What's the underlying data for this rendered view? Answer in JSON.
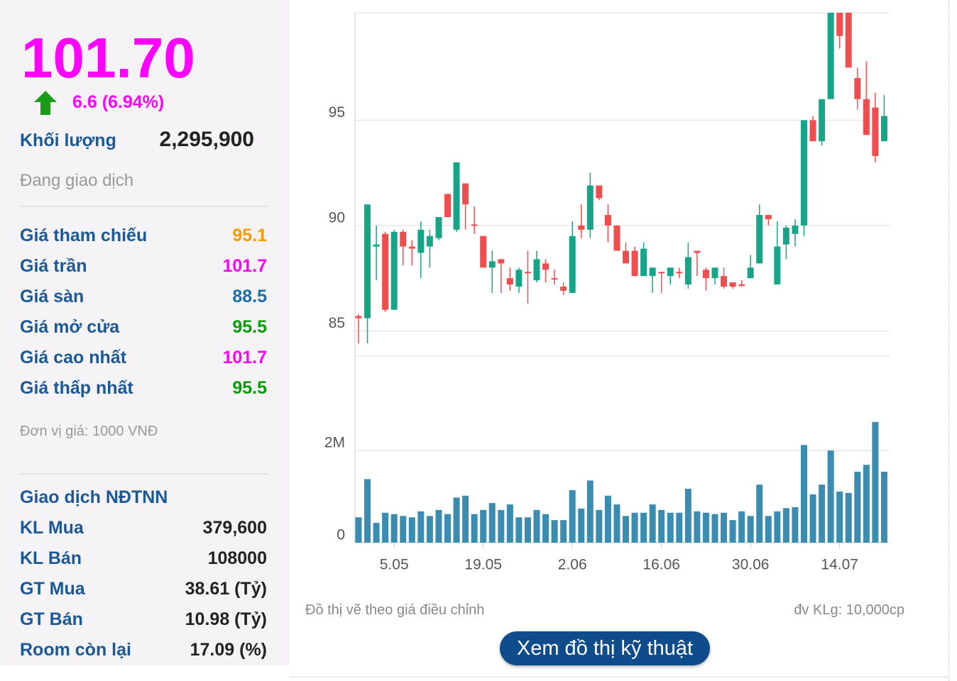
{
  "quote": {
    "price": "101.70",
    "change": "6.6 (6.94%)",
    "volume_label": "Khối lượng",
    "volume": "2,295,900",
    "status": "Đang giao dịch",
    "stats": [
      {
        "label": "Giá tham chiếu",
        "value": "95.1",
        "color": "#ff9900"
      },
      {
        "label": "Giá trần",
        "value": "101.7",
        "color": "#ff00ff"
      },
      {
        "label": "Giá sàn",
        "value": "88.5",
        "color": "#1a6fa8"
      },
      {
        "label": "Giá mở cửa",
        "value": "95.5",
        "color": "#00a000"
      },
      {
        "label": "Giá cao nhất",
        "value": "101.7",
        "color": "#ff00ff"
      },
      {
        "label": "Giá thấp nhất",
        "value": "95.5",
        "color": "#00a000"
      }
    ],
    "unit": "Đơn vị giá: 1000 VNĐ",
    "foreign": {
      "title": "Giao dịch NĐTNN",
      "rows": [
        {
          "label": "KL Mua",
          "value": "379,600"
        },
        {
          "label": "KL Bán",
          "value": "108000"
        },
        {
          "label": "GT Mua",
          "value": "38.61 (Tỷ)"
        },
        {
          "label": "GT Bán",
          "value": "10.98 (Tỷ)"
        },
        {
          "label": "Room còn lại",
          "value": "17.09 (%)"
        }
      ]
    }
  },
  "chart_data": {
    "type": "candlestick",
    "categories": [
      null,
      null,
      null,
      null,
      "5.05",
      null,
      null,
      null,
      null,
      null,
      null,
      null,
      null,
      null,
      "19.05",
      null,
      null,
      null,
      null,
      null,
      null,
      null,
      null,
      null,
      "2.06",
      null,
      null,
      null,
      null,
      null,
      null,
      null,
      null,
      null,
      "16.06",
      null,
      null,
      null,
      null,
      null,
      null,
      null,
      null,
      null,
      "30.06",
      null,
      null,
      null,
      null,
      null,
      null,
      null,
      null,
      null,
      "14.07",
      null,
      null,
      null,
      null,
      null
    ],
    "open": [
      85.7,
      85.6,
      89.0,
      89.6,
      86.0,
      89.7,
      89.0,
      88.7,
      89.0,
      89.4,
      91.5,
      89.8,
      92.0,
      90.05,
      89.5,
      88.0,
      88.4,
      87.5,
      87.1,
      87.8,
      87.4,
      88.2,
      87.5,
      87.1,
      86.8,
      90.0,
      89.8,
      91.9,
      90.5,
      90.0,
      88.8,
      88.8,
      87.6,
      87.6,
      87.8,
      87.6,
      87.8,
      87.2,
      88.8,
      87.9,
      87.5,
      87.6,
      87.3,
      87.2,
      87.5,
      88.2,
      90.5,
      87.2,
      89.1,
      89.6,
      90.0,
      95.0,
      94.0,
      96.0,
      100.1,
      100.1,
      97.0,
      96.0,
      95.6,
      94.0
    ],
    "high": [
      85.8,
      91.0,
      90.0,
      89.7,
      89.8,
      89.8,
      89.3,
      90.2,
      89.8,
      90.4,
      91.5,
      93.0,
      92.0,
      90.9,
      89.5,
      88.8,
      88.4,
      88.0,
      88.0,
      88.8,
      88.8,
      88.4,
      87.9,
      87.3,
      90.2,
      91.0,
      92.5,
      91.9,
      91.0,
      90.0,
      89.2,
      89.0,
      89.2,
      88.0,
      87.8,
      88.0,
      88.0,
      89.2,
      88.8,
      88.0,
      88.0,
      88.0,
      87.3,
      87.4,
      88.6,
      91.0,
      90.5,
      90.2,
      90.0,
      90.3,
      95.0,
      95.2,
      96.0,
      100.1,
      100.1,
      100.1,
      97.5,
      97.8,
      96.3,
      96.2
    ],
    "low": [
      84.4,
      84.4,
      87.4,
      85.9,
      86.0,
      88.1,
      88.1,
      87.5,
      88.0,
      89.3,
      90.4,
      89.7,
      89.8,
      89.6,
      88.0,
      86.8,
      86.8,
      86.9,
      86.8,
      86.3,
      87.3,
      87.3,
      87.2,
      86.7,
      86.8,
      89.4,
      89.4,
      91.2,
      89.2,
      88.8,
      88.2,
      87.6,
      87.6,
      86.8,
      86.8,
      87.2,
      87.5,
      87.0,
      87.6,
      86.9,
      87.2,
      87.0,
      87.0,
      87.1,
      87.5,
      88.2,
      90.0,
      87.2,
      88.4,
      89.0,
      89.5,
      94.0,
      93.8,
      96.0,
      98.4,
      97.5,
      95.5,
      94.3,
      93.0,
      94.0
    ],
    "close": [
      85.6,
      91.0,
      89.1,
      86.0,
      89.7,
      89.0,
      88.9,
      89.8,
      89.5,
      90.4,
      90.4,
      93.0,
      91.0,
      90.0,
      88.0,
      88.3,
      88.2,
      87.2,
      87.9,
      87.75,
      88.4,
      87.9,
      87.45,
      86.9,
      89.5,
      89.8,
      91.9,
      91.3,
      90.0,
      88.8,
      88.2,
      87.6,
      88.9,
      88.0,
      87.75,
      88.0,
      87.75,
      88.5,
      88.7,
      87.5,
      88.0,
      87.1,
      87.1,
      87.15,
      88.0,
      90.5,
      90.3,
      89.0,
      89.9,
      90.0,
      95.0,
      94.0,
      96.0,
      100.1,
      99.0,
      97.5,
      96.0,
      94.3,
      93.3,
      95.2
    ],
    "up_color": "#17a589",
    "down_color": "#f04e4e",
    "ylim": [
      83.8,
      100.1
    ],
    "yticks": [
      85,
      90,
      95
    ],
    "grid": true,
    "volume": {
      "type": "bar",
      "color": "#3a8db0",
      "values": [
        550000,
        1380000,
        430000,
        650000,
        620000,
        580000,
        550000,
        680000,
        580000,
        710000,
        620000,
        980000,
        1020000,
        620000,
        710000,
        860000,
        710000,
        830000,
        550000,
        550000,
        710000,
        620000,
        490000,
        490000,
        1140000,
        740000,
        1350000,
        710000,
        1020000,
        830000,
        580000,
        650000,
        650000,
        830000,
        710000,
        650000,
        650000,
        1170000,
        680000,
        650000,
        620000,
        650000,
        490000,
        680000,
        580000,
        1260000,
        580000,
        680000,
        750000,
        770000,
        2120000,
        1050000,
        1260000,
        2000000,
        1110000,
        1080000,
        1540000,
        1690000,
        2620000,
        1540000
      ],
      "ylim": [
        0,
        4050000
      ],
      "yticks": [
        0,
        {
          "value": 2000000,
          "label": "2M"
        }
      ]
    },
    "note_left": "Đồ thị vẽ theo giá điều chỉnh",
    "note_right": "đv KLg: 10,000cp"
  },
  "button": "Xem đồ thị kỹ thuật"
}
